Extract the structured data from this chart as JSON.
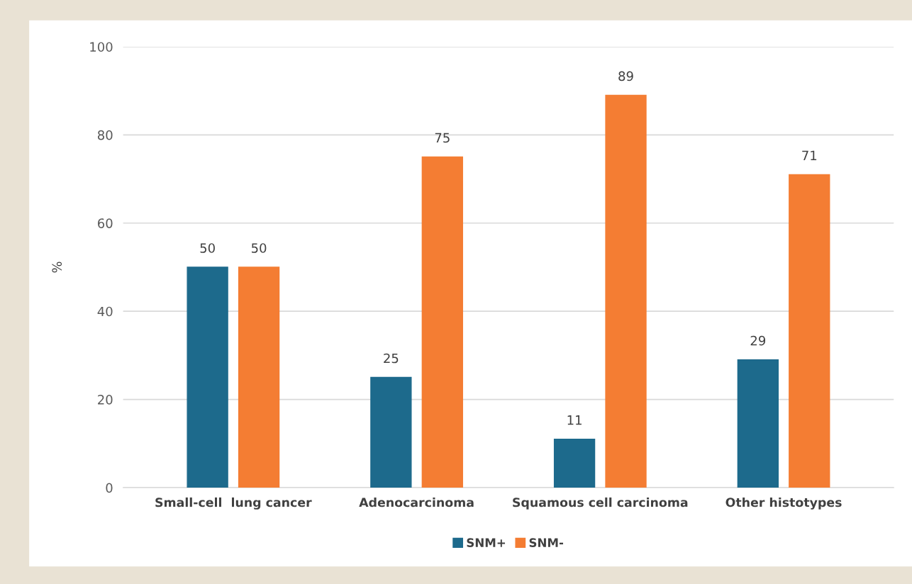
{
  "chart_data": {
    "type": "bar",
    "ylabel": "%",
    "categories": [
      "Small-cell  lung cancer",
      "Adenocarcinoma",
      "Squamous cell carcinoma",
      "Other histotypes"
    ],
    "series": [
      {
        "name": "SNM+",
        "color": "#1d6a8c",
        "values": [
          50,
          25,
          11,
          29
        ]
      },
      {
        "name": "SNM-",
        "color": "#f47d33",
        "values": [
          50,
          75,
          89,
          71
        ]
      }
    ],
    "ylim": [
      0,
      100
    ],
    "yticks": [
      0,
      20,
      40,
      60,
      80,
      100
    ],
    "grid": "y",
    "legend": "bottom",
    "data_labels": true
  }
}
